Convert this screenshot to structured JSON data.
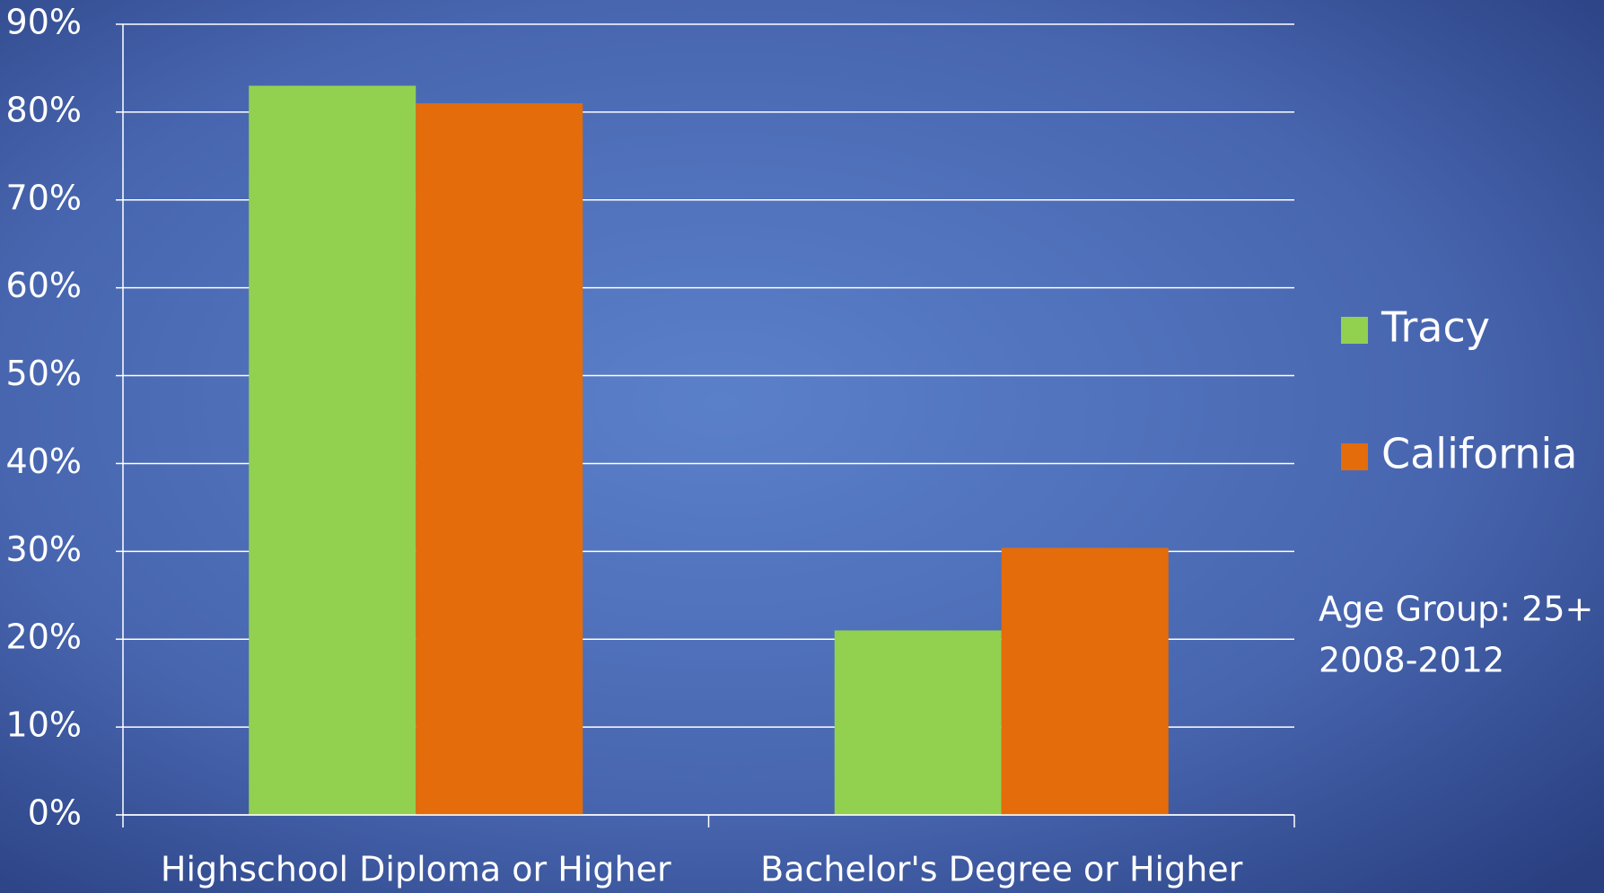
{
  "chart_data": {
    "type": "bar",
    "categories": [
      "Highschool Diploma or Higher",
      "Bachelor's Degree or Higher"
    ],
    "series": [
      {
        "name": "Tracy",
        "color": "#92d050",
        "values": [
          83,
          21
        ]
      },
      {
        "name": "California",
        "color": "#e46c0a",
        "values": [
          81,
          30.4
        ]
      }
    ],
    "ylim": [
      0,
      90
    ],
    "yticks": [
      {
        "value": 0,
        "label": "0%"
      },
      {
        "value": 10,
        "label": "10%"
      },
      {
        "value": 20,
        "label": "20%"
      },
      {
        "value": 30,
        "label": "30%"
      },
      {
        "value": 40,
        "label": "40%"
      },
      {
        "value": 50,
        "label": "50%"
      },
      {
        "value": 60,
        "label": "60%"
      },
      {
        "value": 70,
        "label": "70%"
      },
      {
        "value": 80,
        "label": "80%"
      },
      {
        "value": 90,
        "label": "90%"
      }
    ],
    "grid": true,
    "legend": "right",
    "annotations": [
      "Age Group: 25+",
      "2008-2012"
    ]
  }
}
